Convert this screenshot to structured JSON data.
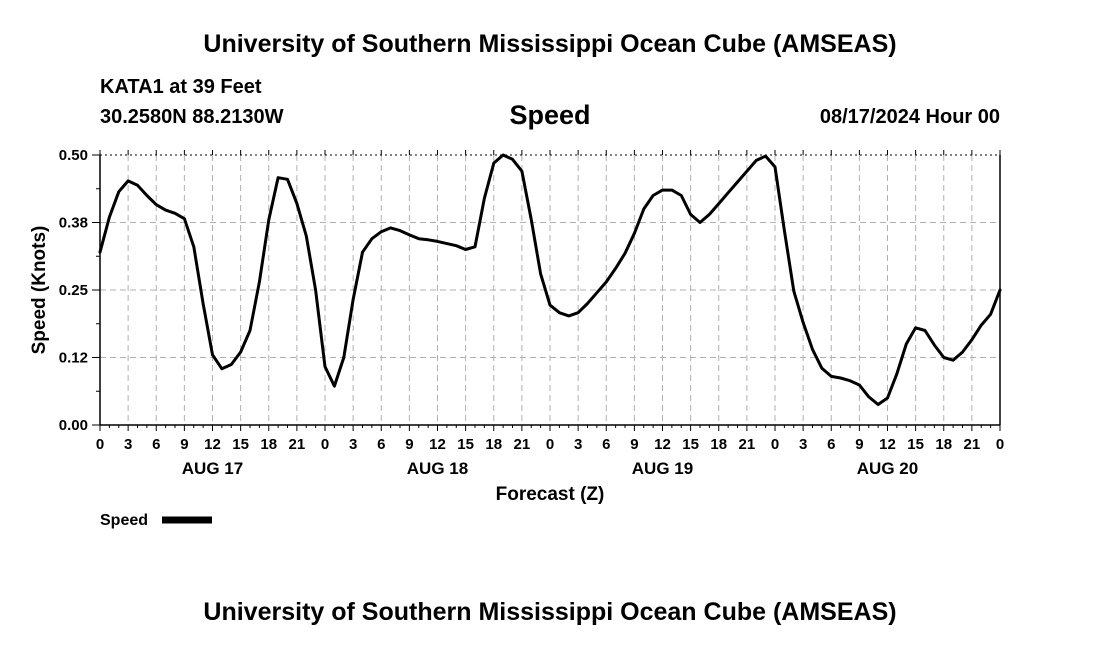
{
  "header": {
    "title": "University of Southern Mississippi Ocean Cube (AMSEAS)",
    "station": "KATA1 at 39 Feet",
    "coordinates": "30.2580N  88.2130W",
    "datetime": "08/17/2024 Hour 00"
  },
  "footer": {
    "title": "University of Southern Mississippi Ocean Cube (AMSEAS)"
  },
  "chart_data": {
    "type": "line",
    "title": "Speed",
    "xlabel": "Forecast (Z)",
    "ylabel": "Speed (Knots)",
    "xlim": [
      0,
      96
    ],
    "ylim": [
      0,
      0.5
    ],
    "grid": true,
    "legend_position": "bottom-left",
    "y_ticks": [
      {
        "value": 0,
        "label": "0.00"
      },
      {
        "value": 0.125,
        "label": "0.12"
      },
      {
        "value": 0.25,
        "label": "0.25"
      },
      {
        "value": 0.375,
        "label": "0.38"
      },
      {
        "value": 0.5,
        "label": "0.50"
      }
    ],
    "x_ticks": [
      {
        "value": 0,
        "label": "0"
      },
      {
        "value": 3,
        "label": "3"
      },
      {
        "value": 6,
        "label": "6"
      },
      {
        "value": 9,
        "label": "9"
      },
      {
        "value": 12,
        "label": "12"
      },
      {
        "value": 15,
        "label": "15"
      },
      {
        "value": 18,
        "label": "18"
      },
      {
        "value": 21,
        "label": "21"
      },
      {
        "value": 24,
        "label": "0"
      },
      {
        "value": 27,
        "label": "3"
      },
      {
        "value": 30,
        "label": "6"
      },
      {
        "value": 33,
        "label": "9"
      },
      {
        "value": 36,
        "label": "12"
      },
      {
        "value": 39,
        "label": "15"
      },
      {
        "value": 42,
        "label": "18"
      },
      {
        "value": 45,
        "label": "21"
      },
      {
        "value": 48,
        "label": "0"
      },
      {
        "value": 51,
        "label": "3"
      },
      {
        "value": 54,
        "label": "6"
      },
      {
        "value": 57,
        "label": "9"
      },
      {
        "value": 60,
        "label": "12"
      },
      {
        "value": 63,
        "label": "15"
      },
      {
        "value": 66,
        "label": "18"
      },
      {
        "value": 69,
        "label": "21"
      },
      {
        "value": 72,
        "label": "0"
      },
      {
        "value": 75,
        "label": "3"
      },
      {
        "value": 78,
        "label": "6"
      },
      {
        "value": 81,
        "label": "9"
      },
      {
        "value": 84,
        "label": "12"
      },
      {
        "value": 87,
        "label": "15"
      },
      {
        "value": 90,
        "label": "18"
      },
      {
        "value": 93,
        "label": "21"
      },
      {
        "value": 96,
        "label": "0"
      }
    ],
    "day_labels": [
      {
        "value": 12,
        "label": "AUG 17"
      },
      {
        "value": 36,
        "label": "AUG 18"
      },
      {
        "value": 60,
        "label": "AUG 19"
      },
      {
        "value": 84,
        "label": "AUG 20"
      }
    ],
    "series": [
      {
        "name": "Speed",
        "color": "#000000",
        "x": [
          0,
          1,
          2,
          3,
          4,
          5,
          6,
          7,
          8,
          9,
          10,
          11,
          12,
          13,
          14,
          15,
          16,
          17,
          18,
          19,
          20,
          21,
          22,
          23,
          24,
          25,
          26,
          27,
          28,
          29,
          30,
          31,
          32,
          33,
          34,
          35,
          36,
          37,
          38,
          39,
          40,
          41,
          42,
          43,
          44,
          45,
          46,
          47,
          48,
          49,
          50,
          51,
          52,
          53,
          54,
          55,
          56,
          57,
          58,
          59,
          60,
          61,
          62,
          63,
          64,
          65,
          66,
          67,
          68,
          69,
          70,
          71,
          72,
          73,
          74,
          75,
          76,
          77,
          78,
          79,
          80,
          81,
          82,
          83,
          84,
          85,
          86,
          87,
          88,
          89,
          90,
          91,
          92,
          93,
          94,
          95,
          96
        ],
        "values": [
          0.32,
          0.385,
          0.432,
          0.452,
          0.444,
          0.425,
          0.408,
          0.398,
          0.392,
          0.382,
          0.33,
          0.225,
          0.13,
          0.104,
          0.112,
          0.135,
          0.175,
          0.265,
          0.38,
          0.458,
          0.455,
          0.41,
          0.35,
          0.25,
          0.108,
          0.072,
          0.125,
          0.232,
          0.32,
          0.345,
          0.358,
          0.365,
          0.36,
          0.352,
          0.345,
          0.343,
          0.34,
          0.336,
          0.332,
          0.325,
          0.33,
          0.42,
          0.485,
          0.5,
          0.492,
          0.47,
          0.38,
          0.28,
          0.222,
          0.208,
          0.202,
          0.208,
          0.225,
          0.245,
          0.265,
          0.29,
          0.318,
          0.355,
          0.4,
          0.425,
          0.435,
          0.435,
          0.425,
          0.39,
          0.375,
          0.39,
          0.41,
          0.43,
          0.45,
          0.47,
          0.49,
          0.498,
          0.478,
          0.36,
          0.248,
          0.19,
          0.14,
          0.105,
          0.09,
          0.087,
          0.082,
          0.074,
          0.052,
          0.038,
          0.05,
          0.095,
          0.15,
          0.18,
          0.175,
          0.148,
          0.125,
          0.12,
          0.135,
          0.158,
          0.185,
          0.205,
          0.25
        ]
      }
    ]
  }
}
